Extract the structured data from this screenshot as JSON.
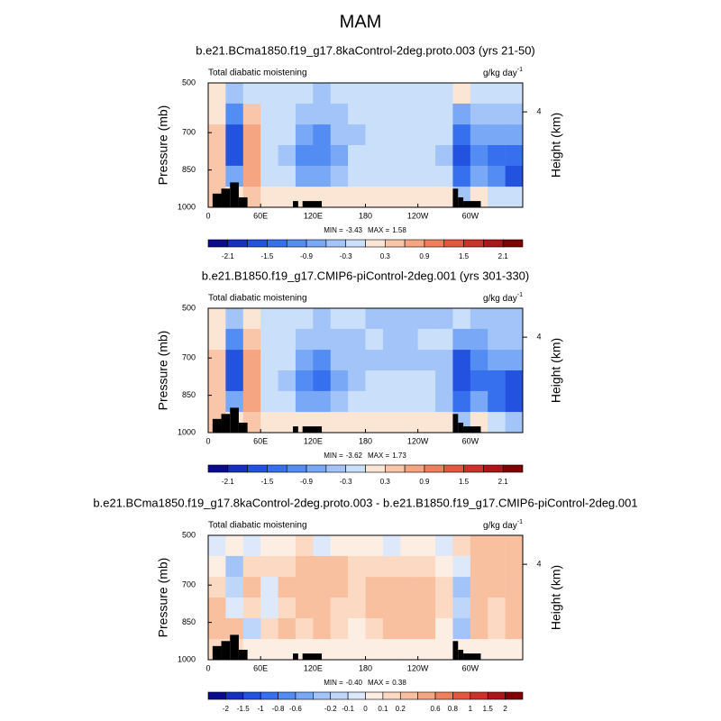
{
  "title": "MAM",
  "chart_data": [
    {
      "type": "contour",
      "subtitle": "b.e21.BCma1850.f19_g17.8kaControl-2deg.proto.003 (yrs 21-50)",
      "left_label": "Total diabatic moistening",
      "units": "g/kg day",
      "units_exponent": "-1",
      "ylabel": "Pressure (mb)",
      "y2label": "Height (km)",
      "xlim": [
        0,
        360
      ],
      "ylim": [
        1000,
        500
      ],
      "xticks": [
        0,
        {
          "value": 60,
          "label": "60E"
        },
        {
          "value": 120,
          "label": "120E"
        },
        180,
        {
          "value": 240,
          "label": "120W"
        },
        {
          "value": 300,
          "label": "60W"
        }
      ],
      "yticks": [
        500,
        700,
        850,
        1000
      ],
      "y2ticks": [
        4
      ],
      "min_label": "MIN =",
      "min": -3.43,
      "max_label": "MAX =",
      "max": 1.58,
      "levels": [
        -2.1,
        {
          "value": -1.8
        },
        -1.5,
        {
          "value": -1.2
        },
        -0.9,
        {
          "value": -0.6
        },
        -0.3,
        {
          "value": 0
        },
        0.3,
        {
          "value": 0.6
        },
        0.9,
        {
          "value": 1.2
        },
        1.5,
        {
          "value": 1.8
        },
        2.1
      ],
      "colors": [
        "#0a0a8c",
        "#1530c0",
        "#2352e0",
        "#3670ee",
        "#538cf3",
        "#78a8f6",
        "#a2c4f8",
        "#cadff9",
        "#fbe5d5",
        "#f9c6a9",
        "#f6a582",
        "#f07f5e",
        "#e2573d",
        "#cc322a",
        "#ad1519",
        "#7f0000"
      ],
      "lon_edges": [
        0,
        20,
        40,
        60,
        80,
        100,
        120,
        140,
        160,
        180,
        200,
        220,
        240,
        260,
        280,
        300,
        320,
        340,
        360
      ],
      "p_edges": [
        500,
        583,
        667,
        750,
        833,
        917,
        1000
      ],
      "z": [
        [
          0.2,
          -0.4,
          -0.1,
          -0.3,
          -0.3,
          -0.2,
          -0.4,
          -0.3,
          -0.3,
          -0.3,
          -0.3,
          -0.3,
          -0.3,
          -0.2,
          0.1,
          -0.2,
          -0.3,
          -0.3
        ],
        [
          0.2,
          -1.2,
          0.3,
          -0.3,
          -0.3,
          -0.4,
          -0.4,
          -0.4,
          -0.3,
          -0.3,
          -0.2,
          -0.2,
          -0.2,
          -0.1,
          -0.7,
          -0.4,
          -0.5,
          -0.4
        ],
        [
          0.4,
          -1.8,
          0.6,
          -0.2,
          -0.3,
          -0.7,
          -1.0,
          -0.6,
          -0.4,
          -0.3,
          -0.2,
          -0.2,
          -0.2,
          -0.3,
          -1.5,
          -0.9,
          -0.8,
          -0.7
        ],
        [
          0.3,
          -1.6,
          0.8,
          -0.2,
          -0.4,
          -1.0,
          -1.2,
          -0.7,
          -0.3,
          -0.2,
          -0.1,
          -0.1,
          -0.2,
          -0.4,
          -1.6,
          -1.2,
          -1.3,
          -1.5
        ],
        [
          0.5,
          -0.7,
          0.7,
          -0.2,
          -0.3,
          -0.8,
          -0.9,
          -0.5,
          -0.2,
          -0.1,
          -0.1,
          -0.1,
          -0.1,
          -0.3,
          -1.3,
          -0.8,
          -1.2,
          -1.6
        ],
        [
          0.3,
          0.2,
          0.3,
          0.1,
          0.1,
          0.1,
          0.1,
          0.0,
          0.0,
          0.0,
          0.0,
          0.0,
          0.0,
          0.1,
          -0.4,
          0.2,
          -0.2,
          -0.3
        ]
      ],
      "terrain": [
        {
          "lon": [
            5,
            15
          ],
          "pressure": 945
        },
        {
          "lon": [
            15,
            25
          ],
          "pressure": 925
        },
        {
          "lon": [
            25,
            35
          ],
          "pressure": 900
        },
        {
          "lon": [
            35,
            45
          ],
          "pressure": 960
        },
        {
          "lon": [
            97,
            103
          ],
          "pressure": 975
        },
        {
          "lon": [
            108,
            130
          ],
          "pressure": 975
        },
        {
          "lon": [
            280,
            286
          ],
          "pressure": 925
        },
        {
          "lon": [
            286,
            292
          ],
          "pressure": 960
        },
        {
          "lon": [
            292,
            312
          ],
          "pressure": 975
        }
      ]
    },
    {
      "type": "contour",
      "subtitle": "b.e21.B1850.f19_g17.CMIP6-piControl-2deg.001 (yrs 301-330)",
      "left_label": "Total diabatic moistening",
      "units": "g/kg day",
      "units_exponent": "-1",
      "ylabel": "Pressure (mb)",
      "y2label": "Height (km)",
      "xlim": [
        0,
        360
      ],
      "ylim": [
        1000,
        500
      ],
      "xticks": [
        0,
        {
          "value": 60,
          "label": "60E"
        },
        {
          "value": 120,
          "label": "120E"
        },
        180,
        {
          "value": 240,
          "label": "120W"
        },
        {
          "value": 300,
          "label": "60W"
        }
      ],
      "yticks": [
        500,
        700,
        850,
        1000
      ],
      "y2ticks": [
        4
      ],
      "min_label": "MIN =",
      "min": -3.62,
      "max_label": "MAX =",
      "max": 1.73,
      "levels": [
        -2.1,
        {
          "value": -1.8
        },
        -1.5,
        {
          "value": -1.2
        },
        -0.9,
        {
          "value": -0.6
        },
        -0.3,
        {
          "value": 0
        },
        0.3,
        {
          "value": 0.6
        },
        0.9,
        {
          "value": 1.2
        },
        1.5,
        {
          "value": 1.8
        },
        2.1
      ],
      "colors": [
        "#0a0a8c",
        "#1530c0",
        "#2352e0",
        "#3670ee",
        "#538cf3",
        "#78a8f6",
        "#a2c4f8",
        "#cadff9",
        "#fbe5d5",
        "#f9c6a9",
        "#f6a582",
        "#f07f5e",
        "#e2573d",
        "#cc322a",
        "#ad1519",
        "#7f0000"
      ],
      "lon_edges": [
        0,
        20,
        40,
        60,
        80,
        100,
        120,
        140,
        160,
        180,
        200,
        220,
        240,
        260,
        280,
        300,
        320,
        340,
        360
      ],
      "p_edges": [
        500,
        583,
        667,
        750,
        833,
        917,
        1000
      ],
      "z": [
        [
          0.2,
          -0.4,
          0.1,
          -0.3,
          -0.3,
          -0.3,
          -0.4,
          -0.3,
          -0.3,
          -0.4,
          -0.4,
          -0.4,
          -0.4,
          -0.4,
          -0.1,
          -0.4,
          -0.5,
          -0.4
        ],
        [
          0.2,
          -1.1,
          0.3,
          -0.2,
          -0.3,
          -0.5,
          -0.5,
          -0.4,
          -0.4,
          -0.3,
          -0.4,
          -0.4,
          -0.3,
          -0.2,
          -0.8,
          -0.7,
          -0.6,
          -0.5
        ],
        [
          0.3,
          -1.8,
          0.6,
          -0.1,
          -0.3,
          -0.9,
          -1.1,
          -0.6,
          -0.5,
          -0.4,
          -0.4,
          -0.4,
          -0.4,
          -0.4,
          -1.7,
          -1.1,
          -0.9,
          -0.8
        ],
        [
          0.3,
          -1.6,
          0.8,
          -0.2,
          -0.4,
          -1.2,
          -1.3,
          -0.8,
          -0.4,
          -0.3,
          -0.3,
          -0.3,
          -0.3,
          -0.5,
          -1.8,
          -1.3,
          -1.5,
          -1.7
        ],
        [
          0.4,
          -0.9,
          0.6,
          -0.1,
          -0.3,
          -0.9,
          -0.9,
          -0.5,
          -0.3,
          -0.2,
          -0.2,
          -0.2,
          -0.2,
          -0.4,
          -1.5,
          -0.9,
          -1.4,
          -1.8
        ],
        [
          0.3,
          0.2,
          0.3,
          0.1,
          0.1,
          0.1,
          0.1,
          0.0,
          0.0,
          0.0,
          0.0,
          0.0,
          0.0,
          0.1,
          -0.5,
          0.2,
          -0.3,
          -0.4
        ]
      ],
      "terrain": [
        {
          "lon": [
            5,
            15
          ],
          "pressure": 945
        },
        {
          "lon": [
            15,
            25
          ],
          "pressure": 925
        },
        {
          "lon": [
            25,
            35
          ],
          "pressure": 900
        },
        {
          "lon": [
            35,
            45
          ],
          "pressure": 960
        },
        {
          "lon": [
            97,
            103
          ],
          "pressure": 975
        },
        {
          "lon": [
            108,
            130
          ],
          "pressure": 975
        },
        {
          "lon": [
            280,
            286
          ],
          "pressure": 925
        },
        {
          "lon": [
            286,
            292
          ],
          "pressure": 960
        },
        {
          "lon": [
            292,
            312
          ],
          "pressure": 975
        }
      ]
    },
    {
      "type": "contour",
      "subtitle": "b.e21.BCma1850.f19_g17.8kaControl-2deg.proto.003 - b.e21.B1850.f19_g17.CMIP6-piControl-2deg.001",
      "left_label": "Total diabatic moistening",
      "units": "g/kg day",
      "units_exponent": "-1",
      "ylabel": "Pressure (mb)",
      "y2label": "Height (km)",
      "xlim": [
        0,
        360
      ],
      "ylim": [
        1000,
        500
      ],
      "xticks": [
        0,
        {
          "value": 60,
          "label": "60E"
        },
        {
          "value": 120,
          "label": "120E"
        },
        180,
        {
          "value": 240,
          "label": "120W"
        },
        {
          "value": 300,
          "label": "60W"
        }
      ],
      "yticks": [
        500,
        700,
        850,
        1000
      ],
      "y2ticks": [
        4
      ],
      "min_label": "MIN =",
      "min": {
        "value": -0.4,
        "label": "-0.40"
      },
      "max_label": "MAX =",
      "max": 0.38,
      "levels": [
        -2,
        -1.5,
        -1,
        -0.8,
        -0.6,
        {
          "value": -0.4
        },
        -0.2,
        -0.1,
        0,
        0.1,
        0.2,
        {
          "value": 0.4
        },
        0.6,
        0.8,
        1,
        1.5,
        2
      ],
      "colors": [
        "#0a0a8c",
        "#1530c0",
        "#2352e0",
        "#3670ee",
        "#538cf3",
        "#78a8f6",
        "#a2c4f8",
        "#bdd6f9",
        "#dde9fb",
        "#fdeee3",
        "#fbd9c2",
        "#f9c0a0",
        "#f6a582",
        "#f07f5e",
        "#e2573d",
        "#cc322a",
        "#ad1519",
        "#7f0000"
      ],
      "lon_edges": [
        0,
        20,
        40,
        60,
        80,
        100,
        120,
        140,
        160,
        180,
        200,
        220,
        240,
        260,
        280,
        300,
        320,
        340,
        360
      ],
      "p_edges": [
        500,
        583,
        667,
        750,
        833,
        917,
        1000
      ],
      "z": [
        [
          -0.1,
          0.05,
          -0.1,
          0.05,
          0.05,
          0.1,
          -0.05,
          0.05,
          0.05,
          0.05,
          -0.05,
          0.05,
          0.05,
          -0.05,
          0.1,
          0.2,
          0.3,
          0.2
        ],
        [
          0.05,
          -0.3,
          0.1,
          0.1,
          0.1,
          0.2,
          0.3,
          0.2,
          0.1,
          0.15,
          0.1,
          0.1,
          0.1,
          0.05,
          -0.1,
          0.3,
          0.3,
          0.2
        ],
        [
          0.1,
          -0.2,
          0.2,
          -0.1,
          0.2,
          0.3,
          0.2,
          0.3,
          0.1,
          0.2,
          0.3,
          0.3,
          0.2,
          0.1,
          -0.3,
          0.3,
          0.2,
          0.2
        ],
        [
          0.2,
          -0.1,
          0.1,
          -0.05,
          0.1,
          0.2,
          0.2,
          0.1,
          0.1,
          0.2,
          0.3,
          0.3,
          0.3,
          0.1,
          -0.2,
          0.2,
          0.1,
          0.3
        ],
        [
          0.2,
          0.3,
          -0.2,
          0.1,
          0.2,
          0.1,
          0.2,
          0.1,
          0.05,
          0.1,
          0.2,
          0.2,
          0.2,
          0.05,
          -0.3,
          0.2,
          0.1,
          0.3
        ],
        [
          0.1,
          0.1,
          0.05,
          0.05,
          0.05,
          0.05,
          0.05,
          0.05,
          0.05,
          0.05,
          0.05,
          0.05,
          0.05,
          0.05,
          0.05,
          0.05,
          0.05,
          0.05
        ]
      ],
      "terrain": [
        {
          "lon": [
            5,
            15
          ],
          "pressure": 945
        },
        {
          "lon": [
            15,
            25
          ],
          "pressure": 925
        },
        {
          "lon": [
            25,
            35
          ],
          "pressure": 900
        },
        {
          "lon": [
            35,
            45
          ],
          "pressure": 960
        },
        {
          "lon": [
            97,
            103
          ],
          "pressure": 975
        },
        {
          "lon": [
            108,
            130
          ],
          "pressure": 975
        },
        {
          "lon": [
            280,
            286
          ],
          "pressure": 925
        },
        {
          "lon": [
            286,
            292
          ],
          "pressure": 960
        },
        {
          "lon": [
            292,
            312
          ],
          "pressure": 975
        }
      ]
    }
  ]
}
